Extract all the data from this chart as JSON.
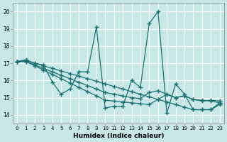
{
  "xlabel": "Humidex (Indice chaleur)",
  "bg_color": "#c8e8e8",
  "line_color": "#1a7070",
  "grid_color": "#ffffff",
  "xlim": [
    -0.5,
    23.5
  ],
  "ylim": [
    13.5,
    20.5
  ],
  "yticks": [
    14,
    15,
    16,
    17,
    18,
    19,
    20
  ],
  "xticks": [
    0,
    1,
    2,
    3,
    4,
    5,
    6,
    7,
    8,
    9,
    10,
    11,
    12,
    13,
    14,
    15,
    16,
    17,
    18,
    19,
    20,
    21,
    22,
    23
  ],
  "lines": [
    {
      "x": [
        0,
        1,
        2,
        3,
        4,
        5,
        6,
        7,
        8,
        9,
        10,
        11,
        12,
        13,
        14,
        15,
        16,
        17,
        18,
        19,
        20,
        21,
        22,
        23
      ],
      "y": [
        17.1,
        17.2,
        17.0,
        16.9,
        15.9,
        15.2,
        15.5,
        16.5,
        16.5,
        19.1,
        14.4,
        14.5,
        14.5,
        16.0,
        15.6,
        19.3,
        20.0,
        14.1,
        15.8,
        15.2,
        14.3,
        14.3,
        14.3,
        14.7
      ]
    },
    {
      "x": [
        0,
        1,
        2,
        3,
        4,
        5,
        6,
        7,
        8,
        9,
        10,
        11,
        12,
        13,
        14,
        15,
        16,
        17,
        18,
        19,
        20,
        21,
        22,
        23
      ],
      "y": [
        17.1,
        17.1,
        16.85,
        16.6,
        16.35,
        16.1,
        15.85,
        15.6,
        15.35,
        15.1,
        14.85,
        14.8,
        14.75,
        14.7,
        14.65,
        14.6,
        14.9,
        15.2,
        15.0,
        15.1,
        14.9,
        14.85,
        14.8,
        14.7
      ]
    },
    {
      "x": [
        0,
        1,
        2,
        3,
        4,
        5,
        6,
        7,
        8,
        9,
        10,
        11,
        12,
        13,
        14,
        15,
        16,
        17,
        18,
        19,
        20,
        21,
        22,
        23
      ],
      "y": [
        17.1,
        17.1,
        16.9,
        16.7,
        16.5,
        16.3,
        16.1,
        15.9,
        15.7,
        15.5,
        15.3,
        15.2,
        15.1,
        15.0,
        14.95,
        15.3,
        15.4,
        15.2,
        15.0,
        15.1,
        14.9,
        14.8,
        14.85,
        14.8
      ]
    },
    {
      "x": [
        0,
        1,
        2,
        3,
        4,
        5,
        6,
        7,
        8,
        9,
        10,
        11,
        12,
        13,
        14,
        15,
        16,
        17,
        18,
        19,
        20,
        21,
        22,
        23
      ],
      "y": [
        17.1,
        17.15,
        17.0,
        16.85,
        16.7,
        16.55,
        16.4,
        16.25,
        16.1,
        15.95,
        15.8,
        15.65,
        15.5,
        15.35,
        15.2,
        15.05,
        14.9,
        14.75,
        14.6,
        14.45,
        14.3,
        14.3,
        14.3,
        14.6
      ]
    }
  ]
}
